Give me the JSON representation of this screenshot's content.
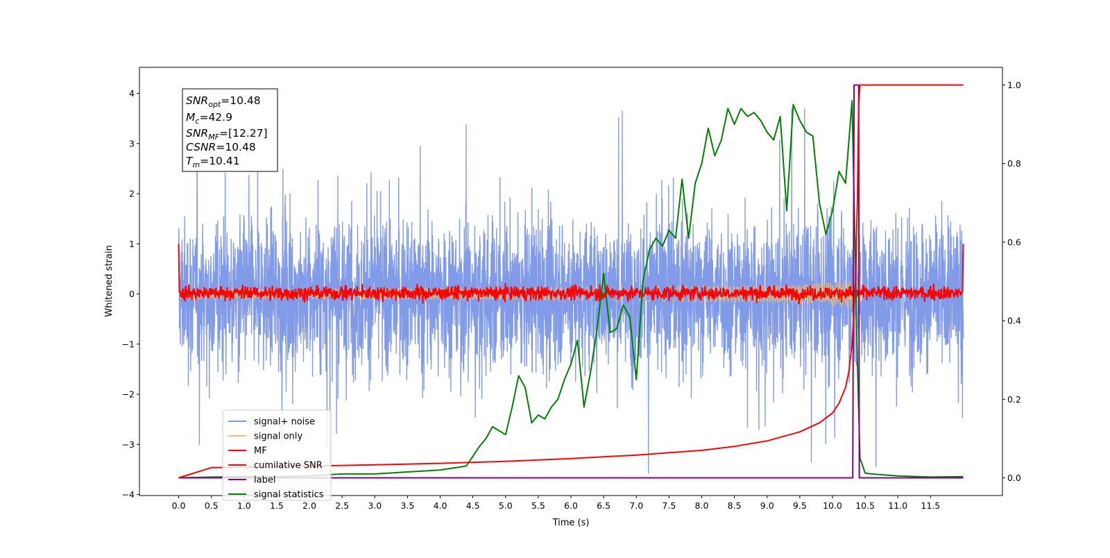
{
  "chart_data": {
    "type": "line",
    "xlabel": "Time (s)",
    "ylabel": "Whitened strain",
    "xlim": [
      -0.6,
      12.6
    ],
    "ylim_left": [
      -4.02,
      4.52
    ],
    "ylim_right": [
      -0.045,
      1.045
    ],
    "x_ticks": [
      "0.0",
      "0.5",
      "1.0",
      "1.5",
      "2.0",
      "2.5",
      "3.0",
      "3.5",
      "4.0",
      "4.5",
      "5.0",
      "5.5",
      "6.0",
      "6.5",
      "7.0",
      "7.5",
      "8.0",
      "8.5",
      "9.0",
      "9.5",
      "10.0",
      "10.5",
      "11.0",
      "11.5"
    ],
    "y_ticks_left": [
      "4",
      "3",
      "2",
      "1",
      "0",
      "−1",
      "−2",
      "−3",
      "−4"
    ],
    "y_ticks_right": [
      "1.0",
      "0.8",
      "0.6",
      "0.4",
      "0.2",
      "0.0"
    ],
    "grid": false,
    "legend_position": "bottom-left",
    "info_box": {
      "snr_opt": "10.48",
      "mc": "42.9",
      "snr_mf": "[12.27]",
      "csnr": "10.48",
      "tm": "10.41"
    },
    "series": [
      {
        "name": "signal+ noise",
        "axis": "left",
        "color": "#7b96e8",
        "note": "dense noise band, mostly within ±1.4 with spikes up to about ±3.7",
        "x_range": [
          0.0,
          12.0
        ]
      },
      {
        "name": "signal only",
        "axis": "left",
        "color": "#f5c06a",
        "note": "chirp growing in amplitude, peaking near merger",
        "peak_t": 10.41,
        "peak_amplitude": 0.6
      },
      {
        "name": "MF",
        "axis": "left",
        "color": "#ff0000",
        "note": "matched filter output fluctuating near 0, edges spike to 1"
      },
      {
        "name": "cumilative SNR",
        "axis": "right",
        "color": "#ff0000",
        "x": [
          0.0,
          0.5,
          1,
          2,
          3,
          4,
          5,
          6,
          7,
          8,
          8.5,
          9,
          9.5,
          9.8,
          10.0,
          10.1,
          10.2,
          10.25,
          10.3,
          10.35,
          10.38,
          10.4,
          10.42,
          10.5,
          12.0
        ],
        "y": [
          0.0,
          0.026,
          0.027,
          0.03,
          0.033,
          0.037,
          0.042,
          0.049,
          0.058,
          0.07,
          0.08,
          0.094,
          0.117,
          0.14,
          0.165,
          0.19,
          0.23,
          0.27,
          0.34,
          0.5,
          0.7,
          0.95,
          1.0,
          1.0,
          1.0
        ]
      },
      {
        "name": "label",
        "axis": "right",
        "color": "#800080",
        "x": [
          0.0,
          10.31,
          10.33,
          10.4,
          10.41,
          10.43,
          12.0
        ],
        "y": [
          0.0,
          0.0,
          1.0,
          1.0,
          0.0,
          0.0,
          0.0
        ]
      },
      {
        "name": "signal statistics",
        "axis": "right",
        "color": "#008000",
        "x": [
          0.0,
          0.5,
          1.0,
          1.5,
          2.0,
          2.5,
          3.0,
          3.5,
          4.0,
          4.2,
          4.4,
          4.6,
          4.7,
          4.8,
          5.0,
          5.1,
          5.2,
          5.3,
          5.4,
          5.5,
          5.6,
          5.7,
          5.8,
          5.9,
          6.0,
          6.1,
          6.2,
          6.3,
          6.4,
          6.5,
          6.6,
          6.7,
          6.8,
          6.9,
          7.0,
          7.1,
          7.2,
          7.3,
          7.4,
          7.5,
          7.6,
          7.7,
          7.8,
          7.9,
          8.0,
          8.1,
          8.2,
          8.3,
          8.4,
          8.5,
          8.6,
          8.7,
          8.8,
          8.9,
          9.0,
          9.1,
          9.2,
          9.3,
          9.4,
          9.5,
          9.6,
          9.7,
          9.8,
          9.9,
          10.0,
          10.1,
          10.2,
          10.3,
          10.38,
          10.42,
          10.5,
          10.6,
          11.0,
          11.5,
          12.0
        ],
        "y": [
          0.0,
          0.002,
          0.003,
          0.003,
          0.005,
          0.01,
          0.01,
          0.015,
          0.02,
          0.025,
          0.03,
          0.08,
          0.1,
          0.13,
          0.11,
          0.18,
          0.26,
          0.23,
          0.14,
          0.16,
          0.15,
          0.18,
          0.2,
          0.25,
          0.29,
          0.35,
          0.18,
          0.27,
          0.38,
          0.52,
          0.37,
          0.38,
          0.44,
          0.41,
          0.25,
          0.5,
          0.58,
          0.61,
          0.59,
          0.63,
          0.61,
          0.76,
          0.61,
          0.75,
          0.8,
          0.89,
          0.82,
          0.86,
          0.94,
          0.9,
          0.94,
          0.92,
          0.93,
          0.91,
          0.88,
          0.86,
          0.92,
          0.68,
          0.95,
          0.91,
          0.88,
          0.87,
          0.7,
          0.62,
          0.68,
          0.78,
          0.75,
          0.96,
          0.3,
          0.05,
          0.012,
          0.01,
          0.005,
          0.002,
          0.003
        ]
      }
    ]
  }
}
